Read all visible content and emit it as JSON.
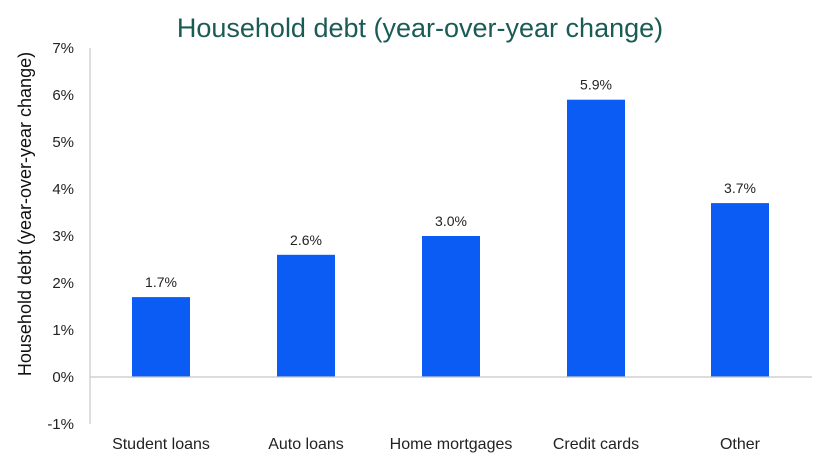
{
  "chart_data": {
    "type": "bar",
    "title": "Household debt (year-over-year change)",
    "ylabel": "Household debt (year-over-year change)",
    "xlabel": "",
    "categories": [
      "Student loans",
      "Auto loans",
      "Home mortgages",
      "Credit cards",
      "Other"
    ],
    "values": [
      1.7,
      2.6,
      3.0,
      5.9,
      3.7
    ],
    "data_labels": [
      "1.7%",
      "2.6%",
      "3.0%",
      "5.9%",
      "3.7%"
    ],
    "ylim": [
      -1,
      7
    ],
    "yticks": [
      -1,
      0,
      1,
      2,
      3,
      4,
      5,
      6,
      7
    ],
    "ytick_labels": [
      "-1%",
      "0%",
      "1%",
      "2%",
      "3%",
      "4%",
      "5%",
      "6%",
      "7%"
    ],
    "grid": false,
    "legend": "none",
    "colors": {
      "bar": "#0a5cf5",
      "title": "#1a5c55",
      "axis": "#c8c8c8"
    }
  }
}
